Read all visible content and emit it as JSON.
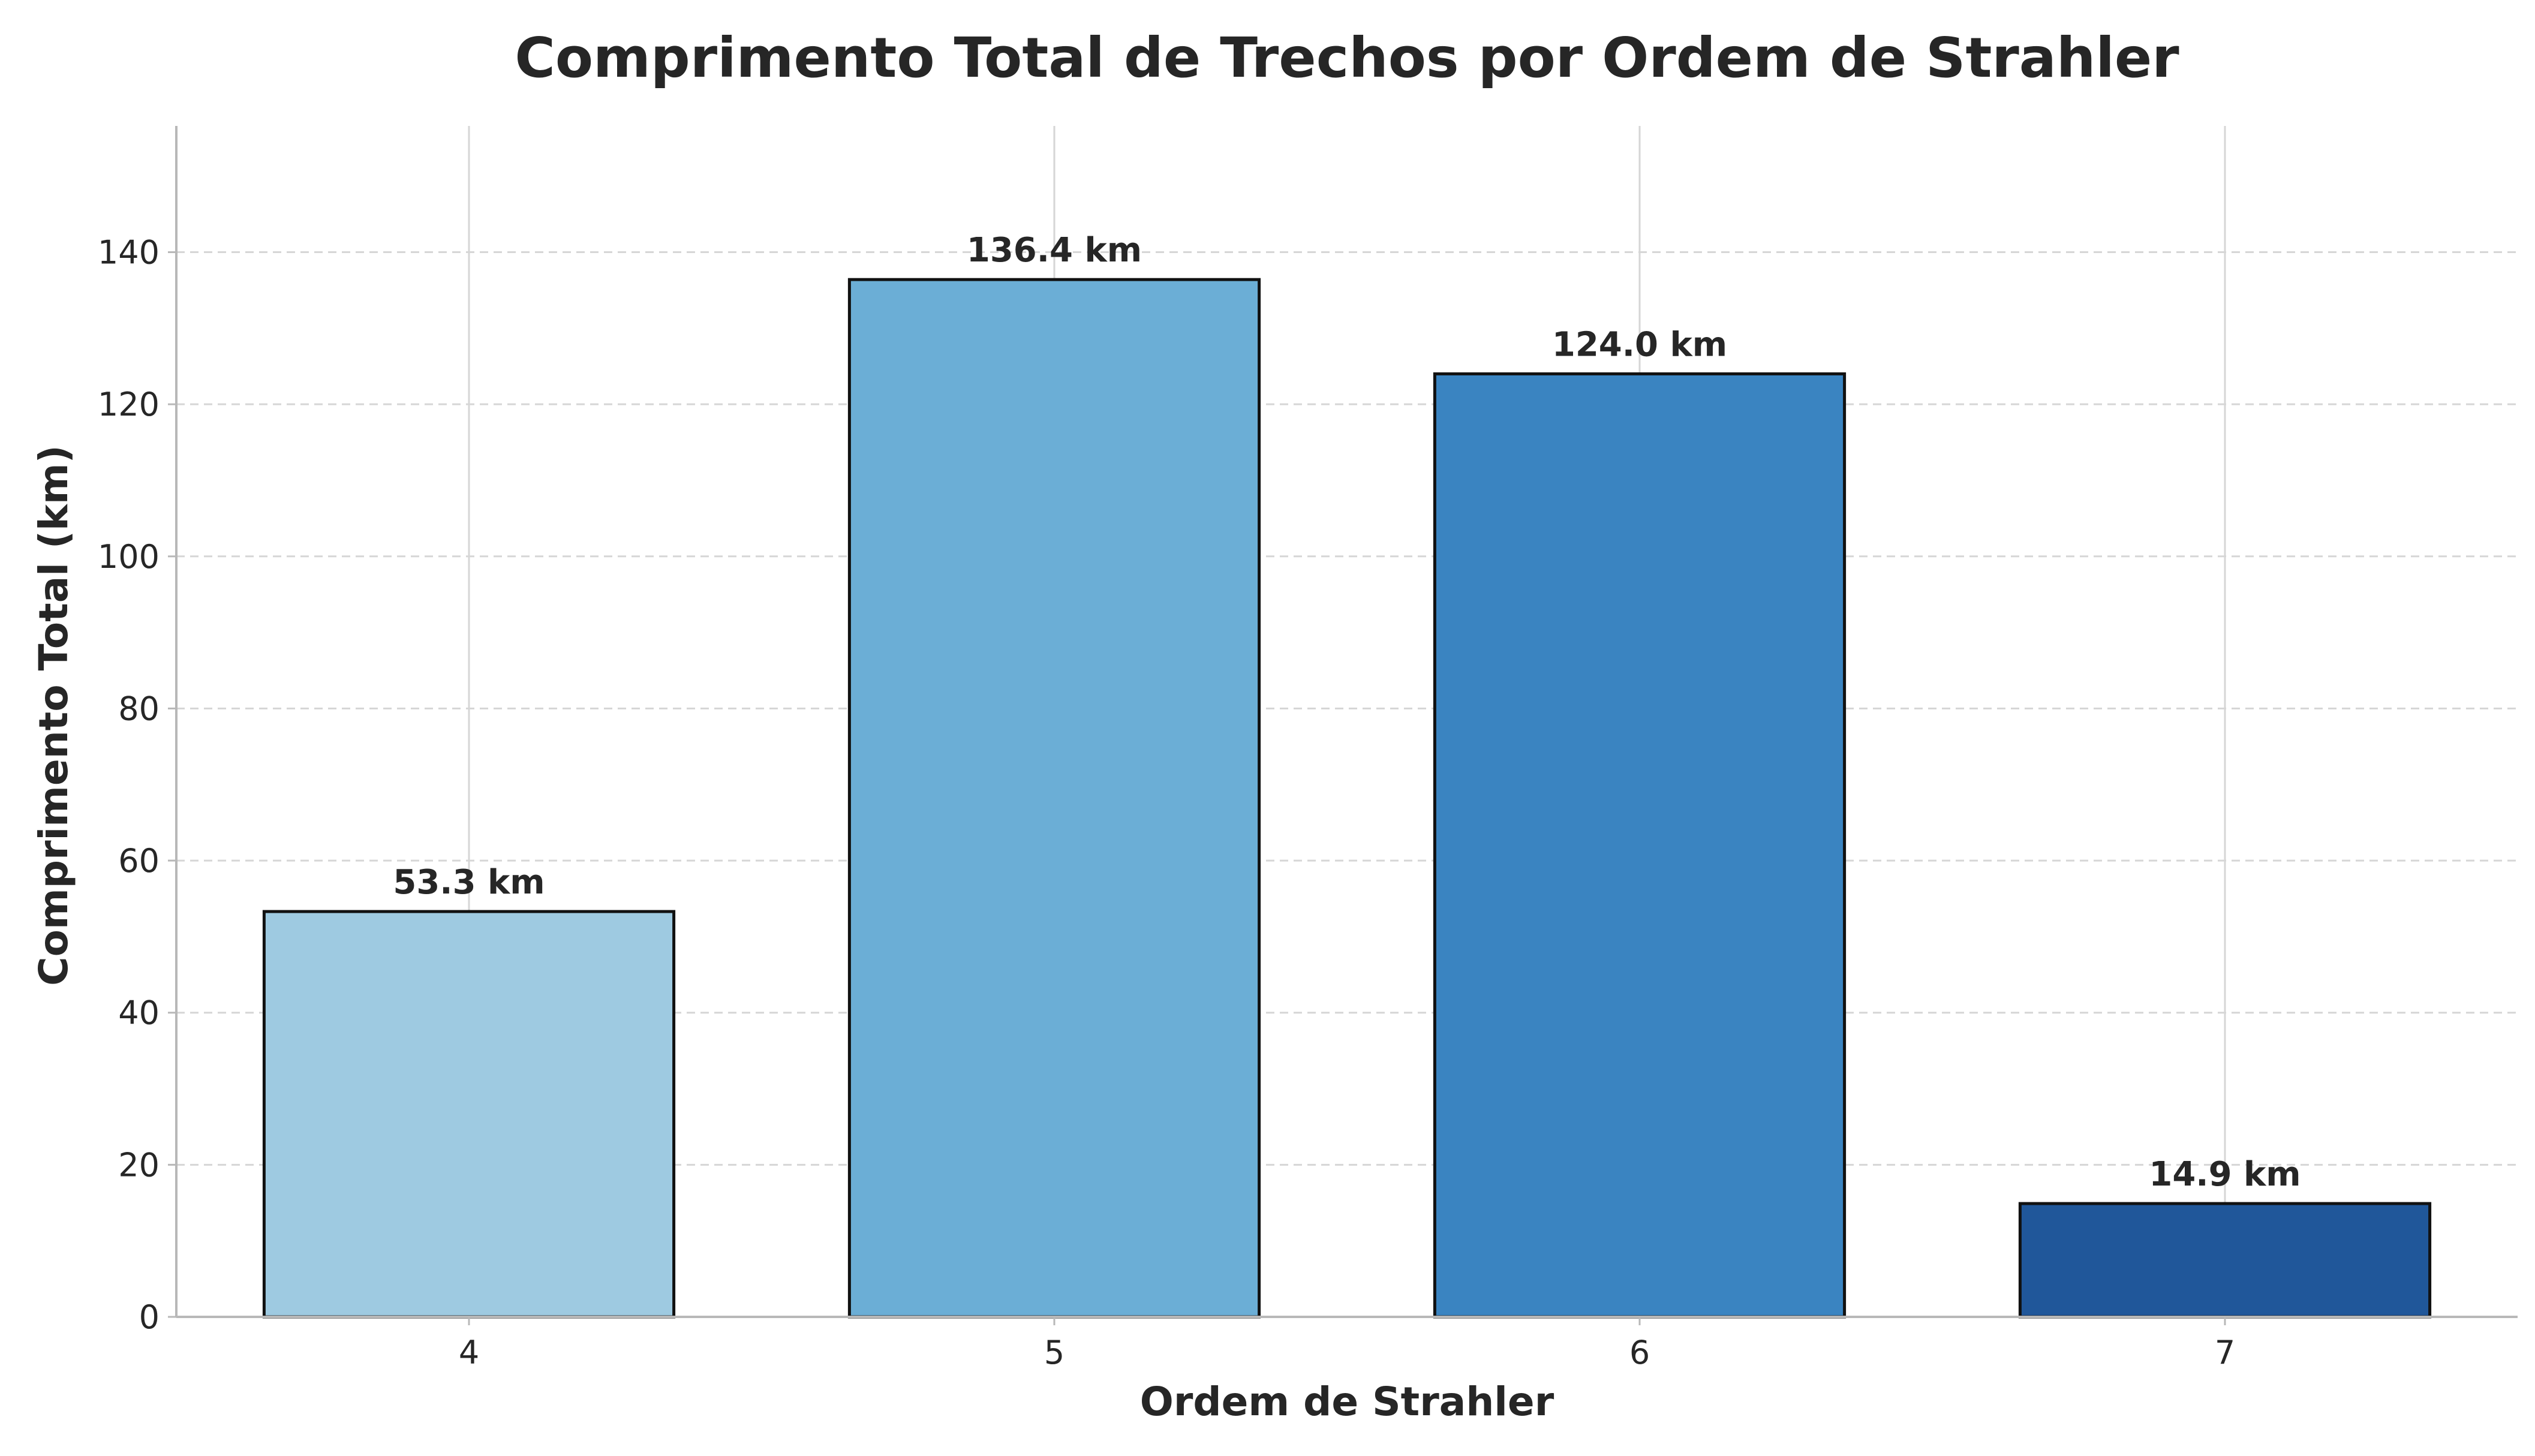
{
  "chart_data": {
    "type": "bar",
    "title": "Comprimento Total de Trechos por Ordem de Strahler",
    "xlabel": "Ordem de Strahler",
    "ylabel": "Comprimento Total (km)",
    "categories": [
      "4",
      "5",
      "6",
      "7"
    ],
    "values": [
      53.3,
      136.4,
      124.0,
      14.9
    ],
    "data_labels": [
      "53.3 km",
      "136.4 km",
      "124.0 km",
      "14.9 km"
    ],
    "bar_colors": [
      "#9ecae1",
      "#6baed6",
      "#3a84c1",
      "#20579a"
    ],
    "edge_color": "#111111",
    "ylim": [
      0,
      156.6
    ],
    "yticks": [
      0,
      20,
      40,
      60,
      80,
      100,
      120,
      140
    ],
    "grid": true,
    "legend": "none"
  }
}
